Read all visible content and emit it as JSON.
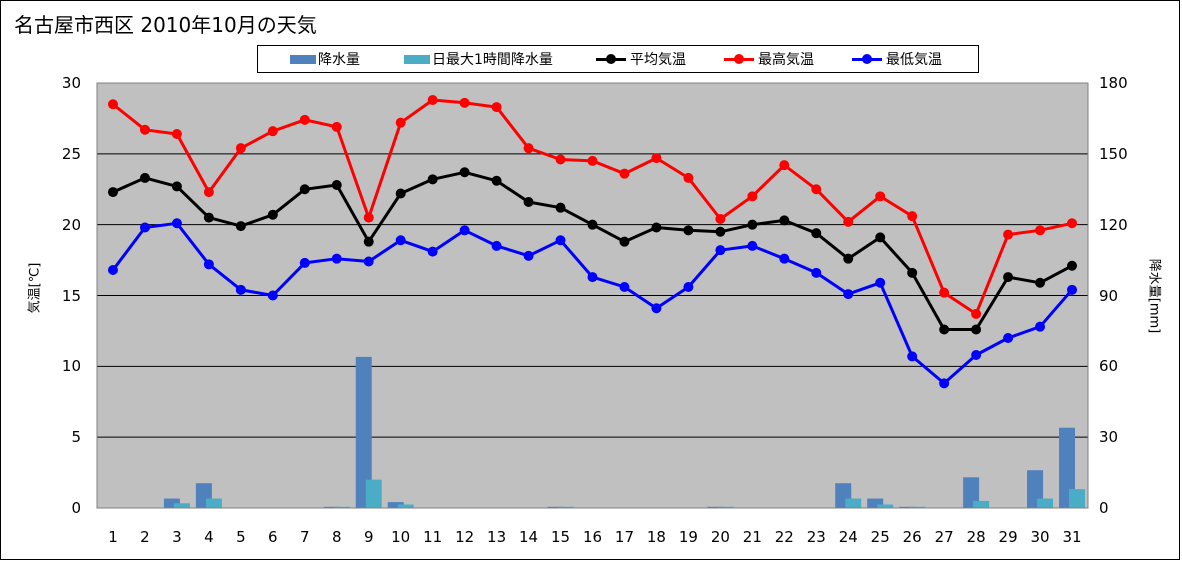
{
  "title": "名古屋市西区  2010年10月の天気",
  "legend": [
    {
      "label": "降水量",
      "color": "#4f81bd",
      "kind": "bar"
    },
    {
      "label": "日最大1時間降水量",
      "color": "#4bacc6",
      "kind": "bar"
    },
    {
      "label": "平均気温",
      "color": "#000000",
      "kind": "line"
    },
    {
      "label": "最高気温",
      "color": "#ff0000",
      "kind": "line"
    },
    {
      "label": "最低気温",
      "color": "#0000ff",
      "kind": "line"
    }
  ],
  "chart_data": {
    "type": "line",
    "categories": [
      "1",
      "2",
      "3",
      "4",
      "5",
      "6",
      "7",
      "8",
      "9",
      "10",
      "11",
      "12",
      "13",
      "14",
      "15",
      "16",
      "17",
      "18",
      "19",
      "20",
      "21",
      "22",
      "23",
      "24",
      "25",
      "26",
      "27",
      "28",
      "29",
      "30",
      "31"
    ],
    "ylabel": "気温[℃]",
    "y2label": "降水量[mm]",
    "ylim": [
      0,
      30
    ],
    "y2lim": [
      0,
      180
    ],
    "yticks": [
      "0",
      "5",
      "10",
      "15",
      "20",
      "25",
      "30"
    ],
    "y2ticks": [
      "0",
      "30",
      "60",
      "90",
      "120",
      "150",
      "180"
    ],
    "grid": true,
    "plot_background": "#c0c0c0",
    "series": [
      {
        "name": "降水量",
        "kind": "bar",
        "axis": "right",
        "color": "#4f81bd",
        "values": [
          0,
          0,
          4,
          10.5,
          0,
          0,
          0,
          0.5,
          64,
          2.5,
          0,
          0,
          0,
          0,
          0.5,
          0,
          0,
          0,
          0,
          0.5,
          0,
          0,
          0,
          10.5,
          4,
          0.5,
          0,
          13,
          0,
          16,
          34
        ]
      },
      {
        "name": "日最大1時間降水量",
        "kind": "bar",
        "axis": "right",
        "color": "#4bacc6",
        "values": [
          0,
          0,
          2,
          4,
          0,
          0,
          0,
          0.5,
          12,
          1.5,
          0,
          0,
          0,
          0,
          0.5,
          0,
          0,
          0,
          0,
          0.5,
          0,
          0,
          0,
          4,
          1.5,
          0.5,
          0,
          3,
          0,
          4,
          8
        ]
      },
      {
        "name": "平均気温",
        "kind": "line",
        "axis": "left",
        "color": "#000000",
        "values": [
          22.3,
          23.3,
          22.7,
          20.5,
          19.9,
          20.7,
          22.5,
          22.8,
          18.8,
          22.2,
          23.2,
          23.7,
          23.1,
          21.6,
          21.2,
          20.0,
          18.8,
          19.8,
          19.6,
          19.5,
          20.0,
          20.3,
          19.4,
          17.6,
          19.1,
          16.6,
          12.6,
          12.6,
          16.3,
          15.9,
          17.1
        ]
      },
      {
        "name": "最高気温",
        "kind": "line",
        "axis": "left",
        "color": "#ff0000",
        "values": [
          28.5,
          26.7,
          26.4,
          22.3,
          25.4,
          26.6,
          27.4,
          26.9,
          20.5,
          27.2,
          28.8,
          28.6,
          28.3,
          25.4,
          24.6,
          24.5,
          23.6,
          24.7,
          23.3,
          20.4,
          22.0,
          24.2,
          22.5,
          20.2,
          22.0,
          20.6,
          15.2,
          13.7,
          19.3,
          19.6,
          20.1
        ]
      },
      {
        "name": "最低気温",
        "kind": "line",
        "axis": "left",
        "color": "#0000ff",
        "values": [
          16.8,
          19.8,
          20.1,
          17.2,
          15.4,
          15.0,
          17.3,
          17.6,
          17.4,
          18.9,
          18.1,
          19.6,
          18.5,
          17.8,
          18.9,
          16.3,
          15.6,
          14.1,
          15.6,
          18.2,
          18.5,
          17.6,
          16.6,
          15.1,
          15.9,
          10.7,
          8.8,
          10.8,
          12.0,
          12.8,
          15.4
        ]
      }
    ]
  }
}
